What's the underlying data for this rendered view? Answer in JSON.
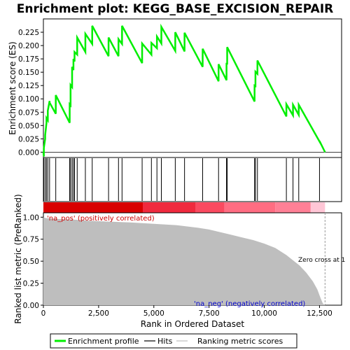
{
  "chart_data": {
    "type": "line",
    "title": "Enrichment plot: KEGG_BASE_EXCISION_REPAIR",
    "xlabel": "Rank in Ordered Dataset",
    "ylabel_top": "Enrichment score (ES)",
    "ylabel_bottom": "Ranked list metric (PreRanked)",
    "xlim": [
      0,
      13500
    ],
    "x_ticks": [
      0,
      2500,
      5000,
      7500,
      10000,
      12500
    ],
    "x_tick_labels": [
      "0",
      "2,500",
      "5,000",
      "7,500",
      "10,000",
      "12,500"
    ],
    "es_ylim": [
      -0.01,
      0.25
    ],
    "es_ticks": [
      0.0,
      0.025,
      0.05,
      0.075,
      0.1,
      0.125,
      0.15,
      0.175,
      0.2,
      0.225
    ],
    "es_tick_labels": [
      "0.000",
      "0.025",
      "0.050",
      "0.075",
      "0.100",
      "0.125",
      "0.150",
      "0.175",
      "0.200",
      "0.225"
    ],
    "metric_ylim": [
      0,
      1.05
    ],
    "metric_ticks": [
      0.0,
      0.25,
      0.5,
      0.75,
      1.0
    ],
    "metric_tick_labels": [
      "0.00",
      "0.25",
      "0.50",
      "0.75",
      "1.00"
    ],
    "hits": [
      20,
      80,
      140,
      200,
      280,
      560,
      1190,
      1230,
      1300,
      1360,
      1410,
      1530,
      1900,
      2210,
      2950,
      3400,
      3560,
      4470,
      4890,
      5140,
      5340,
      5970,
      6390,
      7210,
      7930,
      8290,
      8320,
      9560,
      9600,
      9690,
      11000,
      11300,
      11560,
      12500
    ],
    "es_series": {
      "name": "Enrichment profile",
      "x": [
        0,
        20,
        20,
        80,
        80,
        140,
        140,
        200,
        200,
        280,
        280,
        560,
        560,
        1190,
        1190,
        1230,
        1230,
        1300,
        1300,
        1360,
        1360,
        1410,
        1410,
        1530,
        1530,
        1900,
        1900,
        2210,
        2210,
        2950,
        2950,
        3400,
        3400,
        3560,
        3560,
        4470,
        4470,
        4890,
        4890,
        5140,
        5140,
        5340,
        5340,
        5970,
        5970,
        6390,
        6390,
        7210,
        7210,
        7930,
        7930,
        8290,
        8290,
        8320,
        8320,
        9560,
        9560,
        9600,
        9600,
        9690,
        9690,
        11000,
        11000,
        11300,
        11300,
        11560,
        11560,
        12500,
        12500,
        12750
      ],
      "y": [
        0.0,
        -0.008,
        0.008,
        0.025,
        0.032,
        0.055,
        0.064,
        0.06,
        0.078,
        0.096,
        0.093,
        0.072,
        0.107,
        0.055,
        0.09,
        0.088,
        0.126,
        0.122,
        0.16,
        0.154,
        0.175,
        0.17,
        0.188,
        0.183,
        0.215,
        0.188,
        0.222,
        0.203,
        0.237,
        0.18,
        0.215,
        0.18,
        0.212,
        0.203,
        0.237,
        0.167,
        0.204,
        0.183,
        0.205,
        0.195,
        0.217,
        0.204,
        0.235,
        0.19,
        0.225,
        0.189,
        0.224,
        0.16,
        0.194,
        0.133,
        0.165,
        0.135,
        0.166,
        0.166,
        0.197,
        0.095,
        0.125,
        0.124,
        0.151,
        0.147,
        0.172,
        0.067,
        0.09,
        0.069,
        0.089,
        0.07,
        0.089,
        0.02,
        0.021,
        0.0
      ]
    },
    "metric_series": {
      "name": "Ranking metric scores",
      "x": [
        0,
        100,
        300,
        600,
        1000,
        1500,
        2000,
        3000,
        4000,
        5000,
        6000,
        7000,
        7500,
        8000,
        8500,
        9000,
        9500,
        10000,
        10500,
        11000,
        11300,
        11600,
        11900,
        12200,
        12400,
        12550,
        12650,
        12750
      ],
      "y": [
        1.0,
        0.99,
        0.985,
        0.98,
        0.975,
        0.97,
        0.96,
        0.95,
        0.94,
        0.925,
        0.91,
        0.88,
        0.86,
        0.83,
        0.8,
        0.77,
        0.74,
        0.7,
        0.65,
        0.57,
        0.51,
        0.45,
        0.37,
        0.27,
        0.18,
        0.08,
        0.02,
        0.0
      ]
    },
    "heat_segments": [
      {
        "x": [
          0,
          4500
        ],
        "color": "#d90000"
      },
      {
        "x": [
          4500,
          6900
        ],
        "color": "#f02a3e"
      },
      {
        "x": [
          6900,
          8200
        ],
        "color": "#fa4a60"
      },
      {
        "x": [
          8200,
          10500
        ],
        "color": "#ff6d82"
      },
      {
        "x": [
          10500,
          12100
        ],
        "color": "#ff8096"
      },
      {
        "x": [
          12100,
          12750
        ],
        "color": "#ffc6d6"
      }
    ],
    "pos_label": "'na_pos' (positively correlated)",
    "neg_label": "'na_neg' (negatively correlated)",
    "zero_cross_label": "Zero cross at 1",
    "zero_cross_x": 12750,
    "legend": [
      {
        "label": "Enrichment profile",
        "color": "#00ee00"
      },
      {
        "label": "Hits",
        "color": "#000000"
      },
      {
        "label": "Ranking metric scores",
        "color": "#bebebe"
      }
    ],
    "colors": {
      "es_line": "#00ee00",
      "hit": "#000000",
      "metric_fill": "#bebebe",
      "pos_text": "#cc0000",
      "neg_text": "#0000cc",
      "zero_line": "#999999"
    }
  }
}
